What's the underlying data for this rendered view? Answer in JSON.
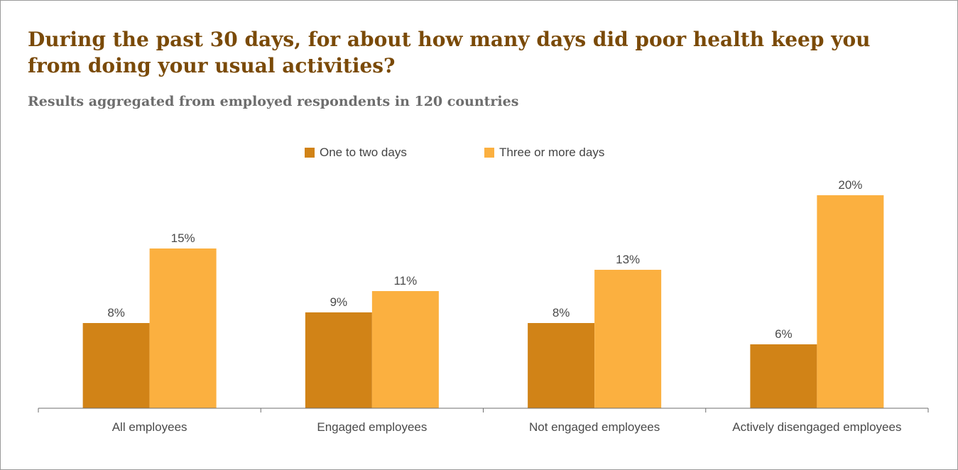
{
  "page": {
    "title": "During the past 30 days, for about how many days did poor health keep you from doing your usual activities?",
    "subtitle": "Results aggregated from employed respondents in 120 countries"
  },
  "chart_data": {
    "type": "bar",
    "title": "During the past 30 days, for about how many days did poor health keep you from doing your usual activities?",
    "subtitle": "Results aggregated from employed respondents in 120 countries",
    "categories": [
      "All employees",
      "Engaged employees",
      "Not engaged employees",
      "Actively disengaged employees"
    ],
    "series": [
      {
        "name": "One to two days",
        "values": [
          8,
          9,
          8,
          6
        ],
        "labels": [
          "8%",
          "9%",
          "8%",
          "6%"
        ],
        "color": "#d18317"
      },
      {
        "name": "Three or more days",
        "values": [
          15,
          11,
          13,
          20
        ],
        "labels": [
          "15%",
          "11%",
          "13%",
          "20%"
        ],
        "color": "#fbb040"
      }
    ],
    "xlabel": "",
    "ylabel": "",
    "ylim": [
      0,
      20
    ],
    "value_unit": "%",
    "legend_position": "top-center",
    "grid": false,
    "y_axis_visible": false
  },
  "colors": {
    "title": "#7a4a08",
    "subtitle": "#6d6d6d",
    "text": "#4a4a4a",
    "axis": "#6e6e6e",
    "frame": "#9a9a9a"
  }
}
